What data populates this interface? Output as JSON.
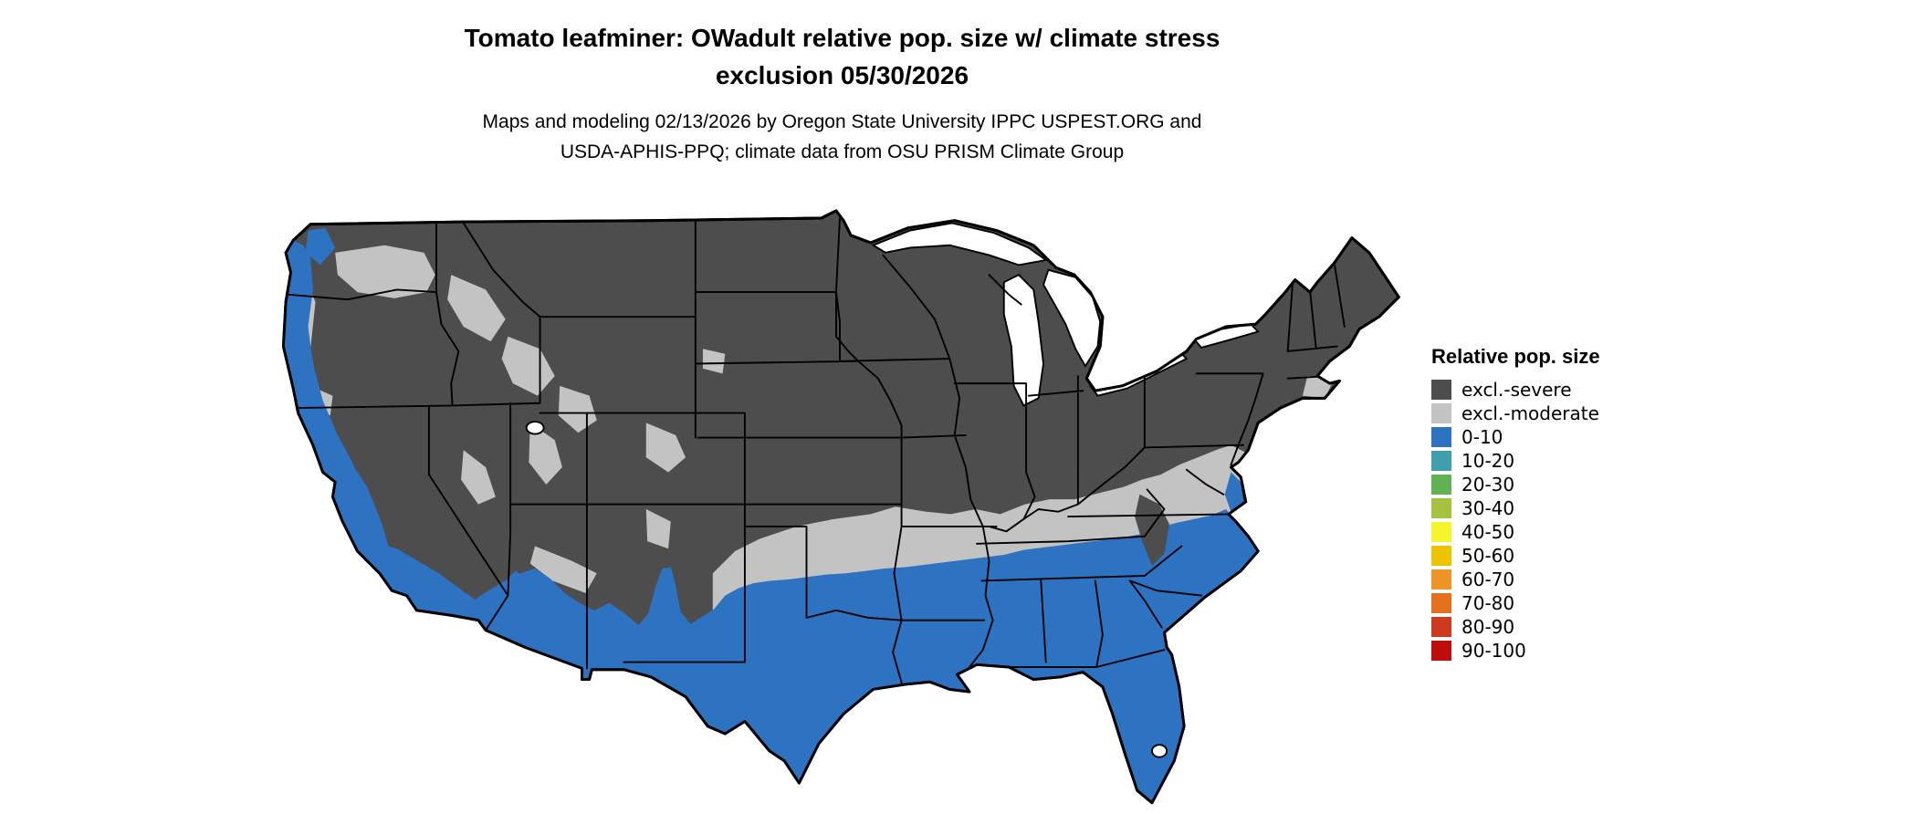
{
  "title": {
    "line1": "Tomato leafminer: OWadult relative pop. size w/ climate stress",
    "line2": "exclusion 05/30/2026"
  },
  "subtitle": {
    "line1": "Maps and modeling 02/13/2026 by Oregon State University IPPC USPEST.ORG and",
    "line2": "USDA-APHIS-PPQ; climate data from OSU PRISM Climate Group"
  },
  "legend": {
    "title": "Relative pop. size",
    "items": [
      {
        "label": "excl.-severe",
        "color": "#4d4d4d"
      },
      {
        "label": "excl.-moderate",
        "color": "#c3c3c3"
      },
      {
        "label": "0-10",
        "color": "#2d73c1"
      },
      {
        "label": "10-20",
        "color": "#3fa0ab"
      },
      {
        "label": "20-30",
        "color": "#62b152"
      },
      {
        "label": "30-40",
        "color": "#a5c140"
      },
      {
        "label": "40-50",
        "color": "#f5f52e"
      },
      {
        "label": "50-60",
        "color": "#eec400"
      },
      {
        "label": "60-70",
        "color": "#ef9426"
      },
      {
        "label": "70-80",
        "color": "#e2701d"
      },
      {
        "label": "80-90",
        "color": "#cf3a1f"
      },
      {
        "label": "90-100",
        "color": "#bd0d0d"
      }
    ]
  },
  "map": {
    "region_colors": {
      "excluded_severe": "#4d4d4d",
      "excluded_moderate": "#c3c3c3",
      "pop_0_10": "#2d73c1",
      "water": "#ffffff",
      "border": "#000000"
    }
  }
}
